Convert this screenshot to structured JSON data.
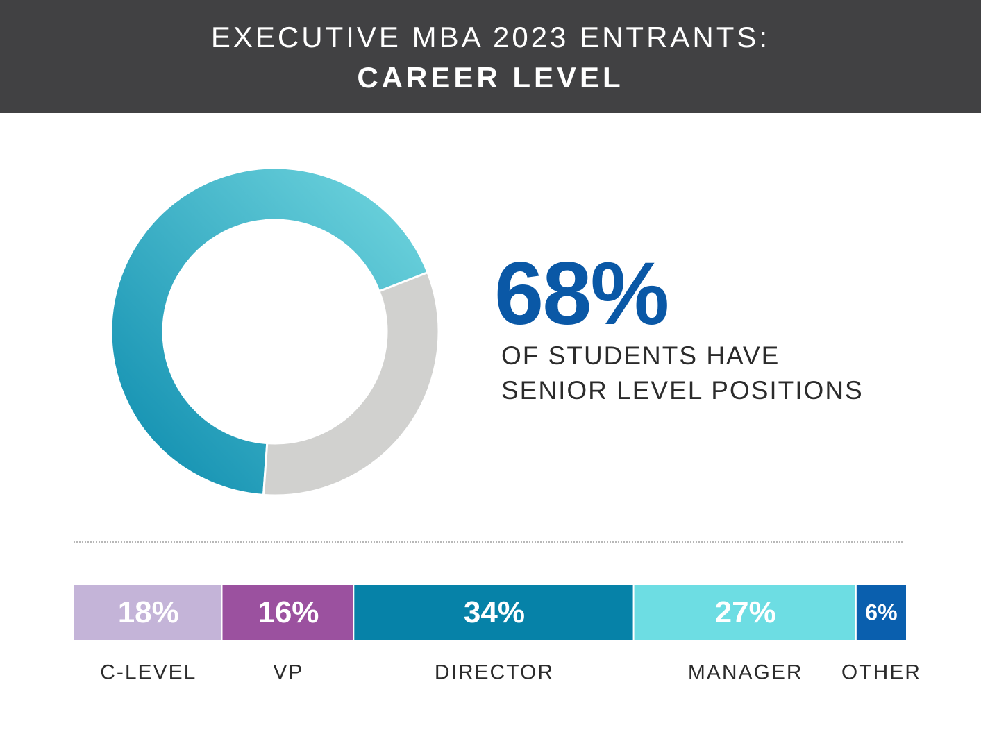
{
  "header": {
    "line1": "EXECUTIVE MBA 2023 ENTRANTS:",
    "line2": "CAREER LEVEL",
    "background": "#414143"
  },
  "highlight": {
    "value": "68%",
    "line1": "OF STUDENTS HAVE",
    "line2": "SENIOR LEVEL POSITIONS",
    "color": "#0a58a6"
  },
  "chart_data": [
    {
      "type": "pie",
      "series": [
        {
          "name": "",
          "values": [
            68,
            32
          ]
        }
      ],
      "colors": {
        "highlighted": [
          "#0a8aad",
          "#74d8e0"
        ],
        "remainder": "#d1d1cf"
      },
      "start": "bottom-left, clockwise",
      "legend": "none"
    },
    {
      "type": "bar",
      "orientation": "horizontal-stacked",
      "categories": [
        "C-LEVEL",
        "VP",
        "DIRECTOR",
        "MANAGER",
        "OTHER"
      ],
      "values": [
        18,
        16,
        34,
        27,
        6
      ],
      "labels": [
        "18%",
        "16%",
        "34%",
        "27%",
        "6%"
      ],
      "colors": [
        "#c4b4d8",
        "#9b519f",
        "#0682a8",
        "#6ddde3",
        "#0a5fae"
      ],
      "total": 101,
      "legend": "none",
      "grid": false
    }
  ]
}
